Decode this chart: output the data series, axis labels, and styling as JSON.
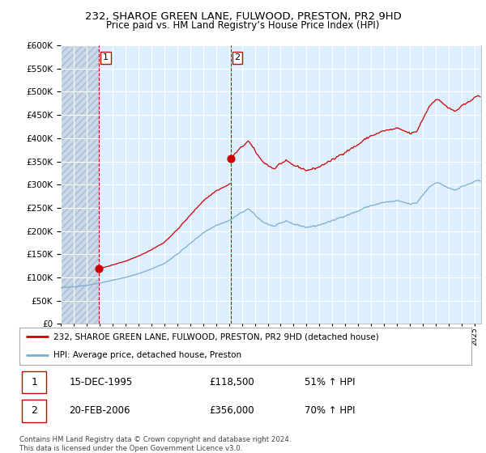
{
  "title": "232, SHAROE GREEN LANE, FULWOOD, PRESTON, PR2 9HD",
  "subtitle": "Price paid vs. HM Land Registry’s House Price Index (HPI)",
  "ylim": [
    0,
    600000
  ],
  "yticks": [
    0,
    50000,
    100000,
    150000,
    200000,
    250000,
    300000,
    350000,
    400000,
    450000,
    500000,
    550000,
    600000
  ],
  "sale1_year": 1995.958,
  "sale1_price": 118500,
  "sale2_year": 2006.125,
  "sale2_price": 356000,
  "line_color_house": "#cc0000",
  "line_color_hpi": "#7aadcc",
  "dot_color": "#cc0000",
  "legend_house": "232, SHAROE GREEN LANE, FULWOOD, PRESTON, PR2 9HD (detached house)",
  "legend_hpi": "HPI: Average price, detached house, Preston",
  "table_row1": [
    "1",
    "15-DEC-1995",
    "£118,500",
    "51% ↑ HPI"
  ],
  "table_row2": [
    "2",
    "20-FEB-2006",
    "£356,000",
    "70% ↑ HPI"
  ],
  "footnote": "Contains HM Land Registry data © Crown copyright and database right 2024.\nThis data is licensed under the Open Government Licence v3.0.",
  "plot_bg_color": "#ddeeff",
  "hatch_color": "#c8d8e8",
  "grid_color": "#ffffff",
  "vline_color": "#cc0000",
  "xmin": 1993.0,
  "xmax": 2025.5
}
